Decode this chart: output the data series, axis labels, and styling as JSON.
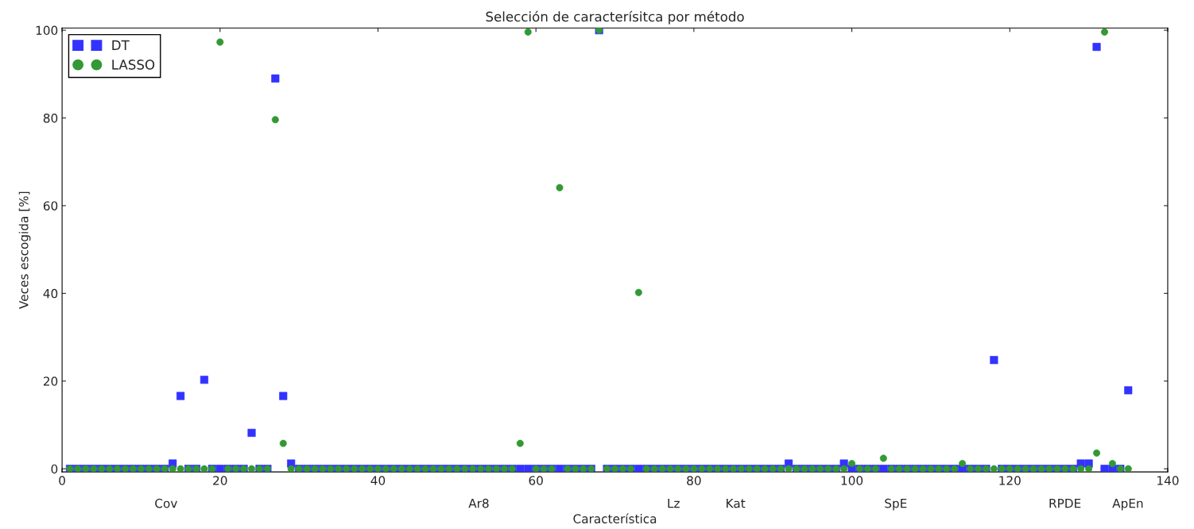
{
  "chart_data": {
    "type": "scatter",
    "title": "Selección de caracterísitca por método",
    "xlabel": "Característica",
    "ylabel": "Veces escogida [%]",
    "x": [
      1,
      2,
      3,
      4,
      5,
      6,
      7,
      8,
      9,
      10,
      11,
      12,
      13,
      14,
      15,
      16,
      17,
      18,
      19,
      20,
      21,
      22,
      23,
      24,
      25,
      26,
      27,
      28,
      29,
      30,
      31,
      32,
      33,
      34,
      35,
      36,
      37,
      38,
      39,
      40,
      41,
      42,
      43,
      44,
      45,
      46,
      47,
      48,
      49,
      50,
      51,
      52,
      53,
      54,
      55,
      56,
      57,
      58,
      59,
      60,
      61,
      62,
      63,
      64,
      65,
      66,
      67,
      68,
      69,
      70,
      71,
      72,
      73,
      74,
      75,
      76,
      77,
      78,
      79,
      80,
      81,
      82,
      83,
      84,
      85,
      86,
      87,
      88,
      89,
      90,
      91,
      92,
      93,
      94,
      95,
      96,
      97,
      98,
      99,
      100,
      101,
      102,
      103,
      104,
      105,
      106,
      107,
      108,
      109,
      110,
      111,
      112,
      113,
      114,
      115,
      116,
      117,
      118,
      119,
      120,
      121,
      122,
      123,
      124,
      125,
      126,
      127,
      128,
      129,
      130,
      131,
      132,
      133,
      134,
      135
    ],
    "series": [
      {
        "name": "DT",
        "color": "#3333ff",
        "marker": "square",
        "values": [
          0,
          0,
          0,
          0,
          0,
          0,
          0,
          0,
          0,
          0,
          0,
          0,
          0,
          1.2,
          16.6,
          0,
          0,
          20.3,
          0,
          0,
          0,
          0,
          0,
          8.2,
          0,
          0,
          89,
          16.6,
          1.2,
          0,
          0,
          0,
          0,
          0,
          0,
          0,
          0,
          0,
          0,
          0,
          0,
          0,
          0,
          0,
          0,
          0,
          0,
          0,
          0,
          0,
          0,
          0,
          0,
          0,
          0,
          0,
          0,
          0,
          0,
          0,
          0,
          0,
          0,
          0,
          0,
          0,
          0,
          100,
          0,
          0,
          0,
          0,
          0,
          0,
          0,
          0,
          0,
          0,
          0,
          0,
          0,
          0,
          0,
          0,
          0,
          0,
          0,
          0,
          0,
          0,
          0,
          1.2,
          0,
          0,
          0,
          0,
          0,
          0,
          1.2,
          0,
          0,
          0,
          0,
          0,
          0,
          0,
          0,
          0,
          0,
          0,
          0,
          0,
          0,
          0,
          0,
          0,
          0,
          24.8,
          0,
          0,
          0,
          0,
          0,
          0,
          0,
          0,
          0,
          0,
          1.2,
          1.2,
          96.2,
          0,
          0,
          0,
          17.9
        ]
      },
      {
        "name": "LASSO",
        "color": "#339933",
        "marker": "circle",
        "values": [
          0,
          0,
          0,
          0,
          0,
          0,
          0,
          0,
          0,
          0,
          0,
          0,
          0,
          0,
          0,
          0,
          0,
          0,
          0,
          97.3,
          0,
          0,
          0,
          0,
          0,
          0,
          79.6,
          5.8,
          0,
          0,
          0,
          0,
          0,
          0,
          0,
          0,
          0,
          0,
          0,
          0,
          0,
          0,
          0,
          0,
          0,
          0,
          0,
          0,
          0,
          0,
          0,
          0,
          0,
          0,
          0,
          0,
          0,
          5.8,
          99.6,
          0,
          0,
          0,
          64.1,
          0,
          0,
          0,
          0,
          100,
          0,
          0,
          0,
          0,
          40.2,
          0,
          0,
          0,
          0,
          0,
          0,
          0,
          0,
          0,
          0,
          0,
          0,
          0,
          0,
          0,
          0,
          0,
          0,
          0,
          0,
          0,
          0,
          0,
          0,
          0,
          0,
          1.2,
          0,
          0,
          0,
          2.4,
          0,
          0,
          0,
          0,
          0,
          0,
          0,
          0,
          0,
          1.2,
          0,
          0,
          0,
          0,
          0,
          0,
          0,
          0,
          0,
          0,
          0,
          0,
          0,
          0,
          0,
          0,
          3.6,
          99.6,
          1.2,
          0,
          0
        ]
      }
    ],
    "xlim": [
      0,
      140
    ],
    "xticks": [
      0,
      20,
      40,
      60,
      80,
      100,
      120,
      140
    ],
    "annotations": [
      "Cov",
      "Ar8",
      "Lz",
      "Kat",
      "SpE",
      "RPDE",
      "ApEn"
    ],
    "ylim": [
      -0.7,
      100.5
    ],
    "yticks": [
      0,
      20,
      40,
      60,
      80,
      100
    ],
    "legend": "top left",
    "grid": false
  }
}
